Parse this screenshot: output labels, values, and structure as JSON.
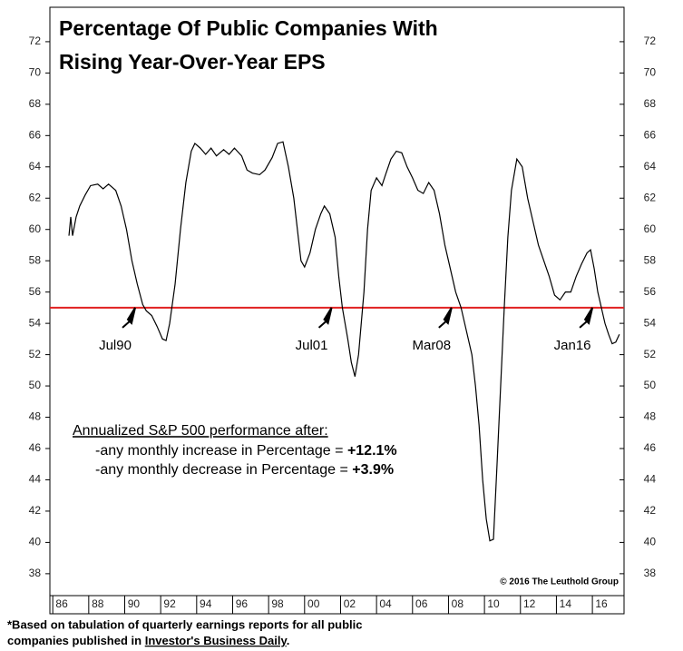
{
  "chart_data": {
    "type": "line",
    "title_lines": [
      "Percentage Of Public Companies With",
      "Rising Year-Over-Year EPS"
    ],
    "series": [
      {
        "name": "Percentage",
        "color": "#000000",
        "x": [
          1986.9,
          1987.0,
          1987.1,
          1987.3,
          1987.5,
          1987.8,
          1988.1,
          1988.5,
          1988.8,
          1989.1,
          1989.5,
          1989.8,
          1990.1,
          1990.4,
          1990.7,
          1991.0,
          1991.2,
          1991.5,
          1991.8,
          1992.1,
          1992.3,
          1992.5,
          1992.8,
          1993.1,
          1993.4,
          1993.7,
          1993.9,
          1994.2,
          1994.5,
          1994.8,
          1995.1,
          1995.5,
          1995.8,
          1996.1,
          1996.5,
          1996.8,
          1997.1,
          1997.5,
          1997.8,
          1998.2,
          1998.5,
          1998.8,
          1999.1,
          1999.4,
          1999.6,
          1999.8,
          2000.0,
          2000.3,
          2000.6,
          2000.9,
          2001.1,
          2001.4,
          2001.7,
          2001.9,
          2002.1,
          2002.4,
          2002.6,
          2002.8,
          2003.0,
          2003.3,
          2003.5,
          2003.7,
          2004.0,
          2004.3,
          2004.5,
          2004.8,
          2005.1,
          2005.4,
          2005.7,
          2006.0,
          2006.3,
          2006.6,
          2006.9,
          2007.2,
          2007.5,
          2007.8,
          2008.1,
          2008.4,
          2008.7,
          2009.0,
          2009.3,
          2009.5,
          2009.7,
          2009.9,
          2010.1,
          2010.3,
          2010.5,
          2010.7,
          2010.9,
          2011.1,
          2011.3,
          2011.5,
          2011.8,
          2012.1,
          2012.4,
          2012.7,
          2013.0,
          2013.3,
          2013.6,
          2013.9,
          2014.2,
          2014.5,
          2014.8,
          2015.1,
          2015.4,
          2015.7,
          2015.9,
          2016.1,
          2016.3,
          2016.5,
          2016.7,
          2016.9,
          2017.1,
          2017.3,
          2017.5
        ],
        "values": [
          59.6,
          60.8,
          59.6,
          60.8,
          61.5,
          62.2,
          62.8,
          62.9,
          62.6,
          62.9,
          62.5,
          61.5,
          60.0,
          58.0,
          56.5,
          55.2,
          54.8,
          54.5,
          53.8,
          53.0,
          52.9,
          54.0,
          56.5,
          60.0,
          63.0,
          65.0,
          65.5,
          65.2,
          64.8,
          65.2,
          64.7,
          65.1,
          64.8,
          65.2,
          64.7,
          63.8,
          63.6,
          63.5,
          63.8,
          64.6,
          65.5,
          65.6,
          64.0,
          62.0,
          60.0,
          58.0,
          57.6,
          58.5,
          60.0,
          61.0,
          61.5,
          61.0,
          59.5,
          57.0,
          55.0,
          53.0,
          51.5,
          50.6,
          52.0,
          56.0,
          60.0,
          62.5,
          63.3,
          62.8,
          63.5,
          64.5,
          65.0,
          64.9,
          64.0,
          63.3,
          62.5,
          62.3,
          63.0,
          62.5,
          61.0,
          59.0,
          57.5,
          56.0,
          55.0,
          53.5,
          52.0,
          50.0,
          47.5,
          44.0,
          41.5,
          40.1,
          40.2,
          45.0,
          50.0,
          55.0,
          59.5,
          62.5,
          64.5,
          64.0,
          62.0,
          60.5,
          59.0,
          58.0,
          57.0,
          55.8,
          55.5,
          56.0,
          56.0,
          57.0,
          57.8,
          58.5,
          58.7,
          57.5,
          56.0,
          55.0,
          54.0,
          53.3,
          52.7,
          52.8,
          53.3
        ]
      }
    ],
    "xlim": [
      1985.84,
      2017.76
    ],
    "xticks": [
      {
        "value": 1986,
        "label": "86"
      },
      {
        "value": 1988,
        "label": "88"
      },
      {
        "value": 1990,
        "label": "90"
      },
      {
        "value": 1992,
        "label": "92"
      },
      {
        "value": 1994,
        "label": "94"
      },
      {
        "value": 1996,
        "label": "96"
      },
      {
        "value": 1998,
        "label": "98"
      },
      {
        "value": 2000,
        "label": "00"
      },
      {
        "value": 2002,
        "label": "02"
      },
      {
        "value": 2004,
        "label": "04"
      },
      {
        "value": 2006,
        "label": "06"
      },
      {
        "value": 2008,
        "label": "08"
      },
      {
        "value": 2010,
        "label": "10"
      },
      {
        "value": 2012,
        "label": "12"
      },
      {
        "value": 2014,
        "label": "14"
      },
      {
        "value": 2016,
        "label": "16"
      }
    ],
    "ylim": [
      36.6,
      74.2
    ],
    "yticks": [
      38,
      40,
      42,
      44,
      46,
      48,
      50,
      52,
      54,
      56,
      58,
      60,
      62,
      64,
      66,
      68,
      70,
      72
    ],
    "y2lim": [
      36.6,
      74.2
    ],
    "y2ticks": [
      38,
      40,
      42,
      44,
      46,
      48,
      50,
      52,
      54,
      56,
      58,
      60,
      62,
      64,
      66,
      68,
      70,
      72
    ],
    "reference_line": {
      "value": 55,
      "color": "#e02020"
    },
    "annotations": [
      {
        "text": "Jul90",
        "x": 1990.58
      },
      {
        "text": "Jul01",
        "x": 2001.5
      },
      {
        "text": "Mar08",
        "x": 2008.17
      },
      {
        "text": "Jan16",
        "x": 2016.0
      }
    ],
    "note_heading": "Annualized S&P 500 performance after:",
    "note_lines": [
      {
        "text": "-any monthly increase in Percentage = ",
        "value": "+12.1%"
      },
      {
        "text": "-any monthly decrease in Percentage = ",
        "value": "+3.9%"
      }
    ],
    "copyright": "© 2016 The Leuthold Group",
    "footnote": {
      "line1": "*Based on tabulation of quarterly earnings reports for all public",
      "line2_start": "companies published in ",
      "source": "Investor's Business Daily",
      "line2_end": "."
    }
  }
}
